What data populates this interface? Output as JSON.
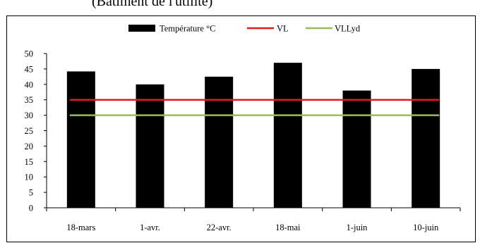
{
  "caption_partial": "(Bâtiment de l'utilité)",
  "chart_data": {
    "type": "bar",
    "categories": [
      "18-mars",
      "1-avr.",
      "22-avr.",
      "18-mai",
      "1-juin",
      "10-juin"
    ],
    "series": [
      {
        "name": "Température °C",
        "kind": "bar",
        "color": "#000000",
        "values": [
          44.2,
          40,
          42.5,
          47,
          38,
          45
        ]
      },
      {
        "name": "VL",
        "kind": "line",
        "color": "#e31b1b",
        "values": [
          35,
          35,
          35,
          35,
          35,
          35
        ]
      },
      {
        "name": "VLLyd",
        "kind": "line",
        "color": "#9bbb59",
        "values": [
          30,
          30,
          30,
          30,
          30,
          30
        ]
      }
    ],
    "ylim": [
      0,
      50
    ],
    "yticks": [
      0,
      5,
      10,
      15,
      20,
      25,
      30,
      35,
      40,
      45,
      50
    ],
    "grid": false,
    "legend_position": "top"
  }
}
